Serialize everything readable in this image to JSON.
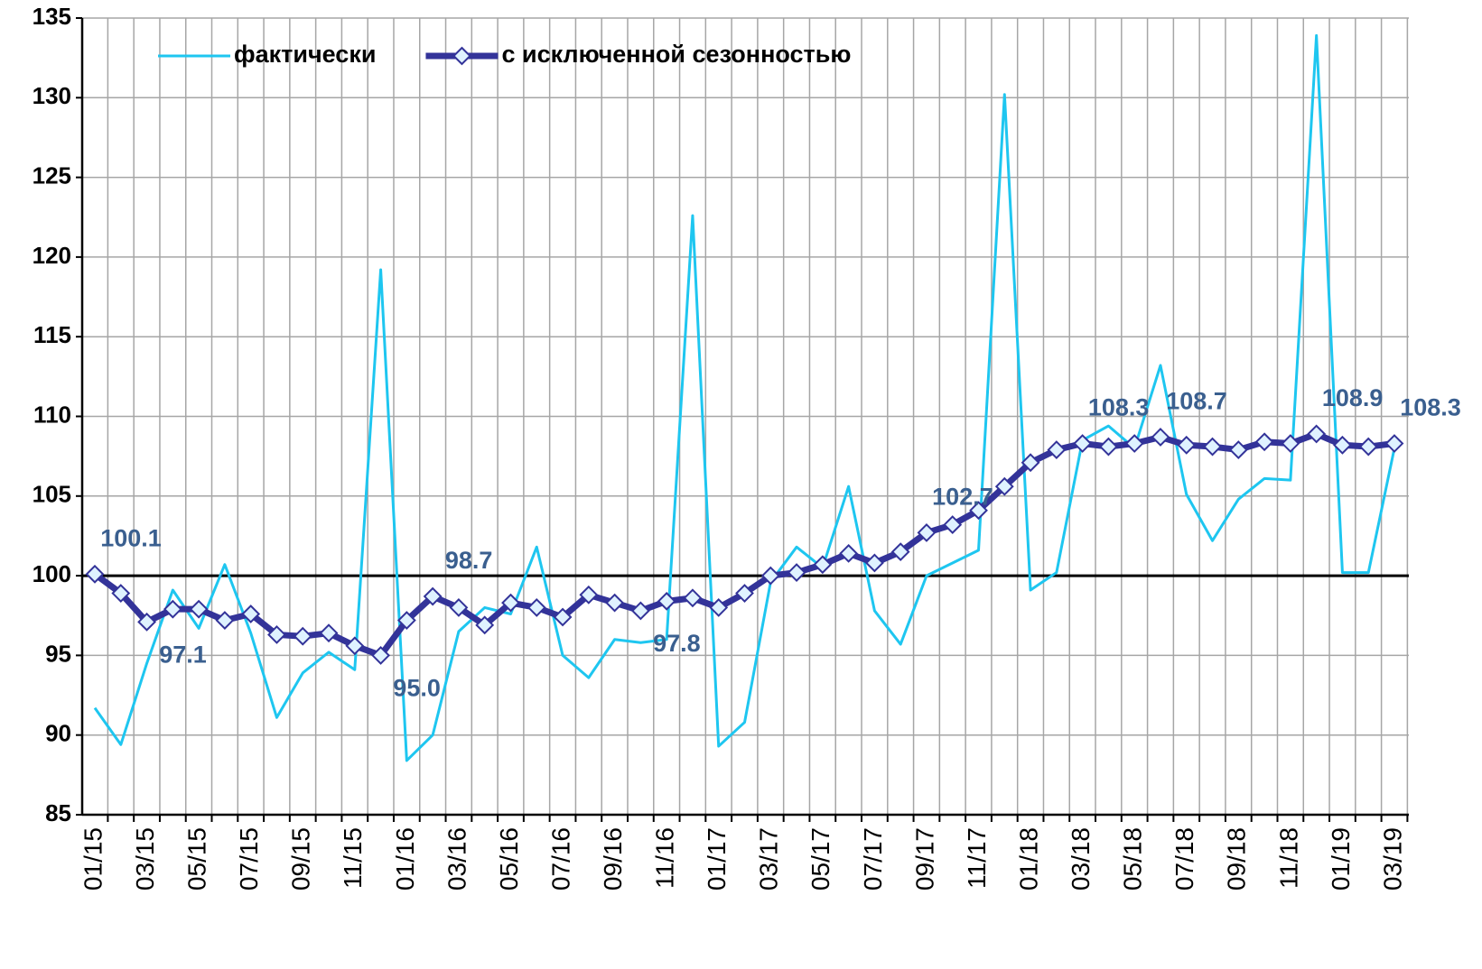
{
  "chart_data": {
    "type": "line",
    "categories": [
      "01/15",
      null,
      "03/15",
      null,
      "05/15",
      null,
      "07/15",
      null,
      "09/15",
      null,
      "11/15",
      null,
      "01/16",
      null,
      "03/16",
      null,
      "05/16",
      null,
      "07/16",
      null,
      "09/16",
      null,
      "11/16",
      null,
      "01/17",
      null,
      "03/17",
      null,
      "05/17",
      null,
      "07/17",
      null,
      "09/17",
      null,
      "11/17",
      null,
      "01/18",
      null,
      "03/18",
      null,
      "05/18",
      null,
      "07/18",
      null,
      "09/18",
      null,
      "11/18",
      null,
      "01/19",
      null,
      "03/19"
    ],
    "series": [
      {
        "name": "фактически",
        "color": "#1ec6f0",
        "values": [
          91.7,
          89.4,
          94.5,
          99.1,
          96.7,
          100.7,
          96.4,
          91.1,
          93.9,
          95.2,
          94.1,
          119.2,
          88.4,
          90.0,
          96.5,
          98.0,
          97.6,
          101.8,
          95.0,
          93.6,
          96.0,
          95.8,
          96.0,
          122.6,
          89.3,
          90.8,
          99.6,
          101.8,
          100.5,
          105.6,
          97.8,
          95.7,
          100.0,
          100.8,
          101.6,
          130.2,
          99.1,
          100.2,
          108.5,
          109.4,
          108.0,
          113.2,
          105.1,
          102.2,
          104.8,
          106.1,
          106.0,
          133.9,
          100.2,
          100.2,
          108.0
        ]
      },
      {
        "name": "с исключенной сезонностью",
        "color": "#333399",
        "marker": "diamond",
        "values": [
          100.1,
          98.9,
          97.1,
          97.9,
          97.9,
          97.2,
          97.6,
          96.3,
          96.2,
          96.4,
          95.6,
          95.0,
          97.2,
          98.7,
          98.0,
          96.9,
          98.3,
          98.0,
          97.4,
          98.8,
          98.3,
          97.8,
          98.4,
          98.6,
          98.0,
          98.9,
          100.0,
          100.2,
          100.7,
          101.4,
          100.8,
          101.5,
          102.7,
          103.2,
          104.1,
          105.6,
          107.1,
          107.9,
          108.3,
          108.1,
          108.3,
          108.7,
          108.2,
          108.1,
          107.9,
          108.4,
          108.3,
          108.9,
          108.2,
          108.1,
          108.3
        ],
        "value_labels": [
          "100.1",
          null,
          "97.1",
          null,
          null,
          null,
          null,
          null,
          null,
          null,
          null,
          "95.0",
          null,
          "98.7",
          null,
          null,
          null,
          null,
          null,
          null,
          null,
          "97.8",
          null,
          null,
          null,
          null,
          null,
          null,
          null,
          null,
          null,
          null,
          "102.7",
          null,
          null,
          null,
          null,
          null,
          "108.3",
          null,
          null,
          "108.7",
          null,
          null,
          null,
          null,
          null,
          "108.9",
          null,
          null,
          "108.3"
        ]
      }
    ],
    "ylim": [
      85,
      135
    ],
    "yticks": [
      85,
      90,
      95,
      100,
      105,
      110,
      115,
      120,
      125,
      130,
      135
    ],
    "baseline": 100,
    "grid": true,
    "legend": "top-left"
  }
}
